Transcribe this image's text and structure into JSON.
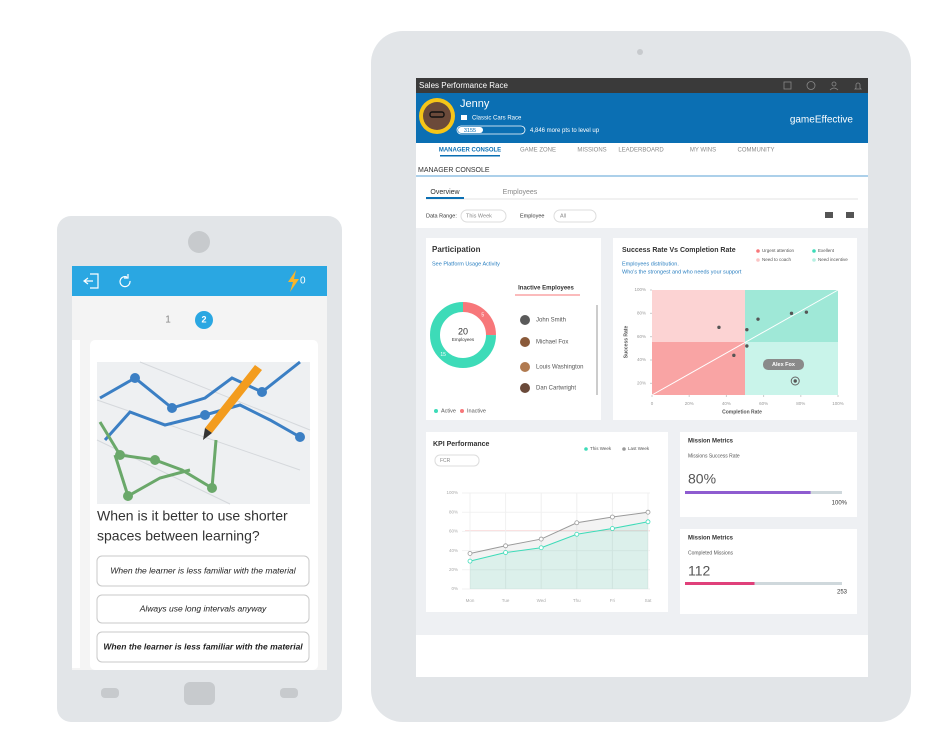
{
  "phone": {
    "score": 0,
    "pages": [
      1,
      2
    ],
    "question": [
      "When is it better to use shorter",
      "spaces between learning?"
    ],
    "answers": [
      "When the learner is less familiar with the material",
      "Always use long intervals anyway",
      "When the learner is less familiar with the material"
    ]
  },
  "tablet": {
    "app_title": "Sales Performance Race",
    "user": {
      "name": "Jenny",
      "race": "Classic Cars Race",
      "points": 3155,
      "to_next_level": "4,846 more pts to level up"
    },
    "brand": "gameEffective",
    "nav": [
      "MANAGER CONSOLE",
      "GAME ZONE",
      "MISSIONS",
      "LEADERBOARD",
      "MY WINS",
      "COMMUNITY"
    ],
    "section": "MANAGER CONSOLE",
    "tabs": [
      "Overview",
      "Employees"
    ],
    "filters": [
      {
        "label": "Data Range:",
        "value": "This Week"
      },
      {
        "label": "Employee",
        "value": "All"
      }
    ],
    "participation": {
      "title": "Participation",
      "subtitle": "See Platform Usage Activity",
      "total": 20,
      "total_label": "Employees",
      "segments": [
        {
          "name": "Active",
          "value": 15,
          "color": "#3ddbb8"
        },
        {
          "name": "Inactive",
          "value": 5,
          "color": "#f7777a"
        }
      ],
      "inactive_title": "Inactive Employees",
      "inactive": [
        "John Smith",
        "Michael Fox",
        "Louis Washington",
        "Dan Cartwright"
      ]
    },
    "success_rate": {
      "type": "scatter",
      "title": "Success Rate Vs Completion Rate",
      "subtitle": [
        "Employees distribution.",
        "Who's the strongest and who needs your support"
      ],
      "legend": [
        {
          "name": "Urgent attention",
          "color": "#f7777a"
        },
        {
          "name": "Exellent",
          "color": "#3ddbb8"
        },
        {
          "name": "Need to coach",
          "color": "#fbc4c4"
        },
        {
          "name": "Need incentive",
          "color": "#b7f0e2"
        }
      ],
      "x_label": "Completion Rate",
      "y_label": "Success Rate",
      "x": [
        36,
        51,
        57,
        51,
        44,
        75,
        83,
        77
      ],
      "y": [
        68,
        66,
        75,
        52,
        44,
        80,
        81,
        22
      ],
      "highlight": "Alex Fox",
      "xlim": [
        0,
        100
      ],
      "ylim": [
        10,
        100
      ],
      "xticks": [
        0,
        {
          "value": 20,
          "label": "20%"
        },
        {
          "value": 40,
          "label": "40%"
        },
        {
          "value": 60,
          "label": "60%"
        },
        {
          "value": 80,
          "label": "80%"
        },
        {
          "value": 100,
          "label": "100%"
        }
      ],
      "yticks": [
        {
          "value": 20,
          "label": "20%"
        },
        {
          "value": 40,
          "label": "40%"
        },
        {
          "value": 60,
          "label": "60%"
        },
        {
          "value": 80,
          "label": "80%"
        },
        {
          "value": 100,
          "label": "100%"
        }
      ]
    },
    "kpi": {
      "type": "line",
      "title": "KPI Performance",
      "metric": "FCR",
      "categories": [
        "Mon",
        "Tue",
        "Wed",
        "Thu",
        "Fri",
        "Sat"
      ],
      "series": [
        {
          "name": "This Week",
          "color": "#3ddbb8",
          "values": [
            29,
            38,
            43,
            57,
            63,
            70
          ]
        },
        {
          "name": "Last Week",
          "color": "#9a9a9a",
          "values": [
            37,
            45,
            52,
            69,
            75,
            80
          ]
        }
      ],
      "ylim": [
        0,
        100
      ],
      "yticks": [
        {
          "value": 0,
          "label": "0%"
        },
        {
          "value": 20,
          "label": "20%"
        },
        {
          "value": 40,
          "label": "40%"
        },
        {
          "value": 60,
          "label": "60%"
        },
        {
          "value": 80,
          "label": "80%"
        },
        {
          "value": 100,
          "label": "100%"
        }
      ]
    },
    "mission_metrics": [
      {
        "title": "Mission Metrics",
        "subtitle": "Missions Success Rate",
        "value": {
          "value": 80,
          "label": "80%"
        },
        "max": {
          "value": 100,
          "label": "100%"
        },
        "color": "#8e5cd0"
      },
      {
        "title": "Mission Metrics",
        "subtitle": "Completed Missions",
        "value": 112,
        "max": 253,
        "color": "#e0407a"
      }
    ]
  }
}
